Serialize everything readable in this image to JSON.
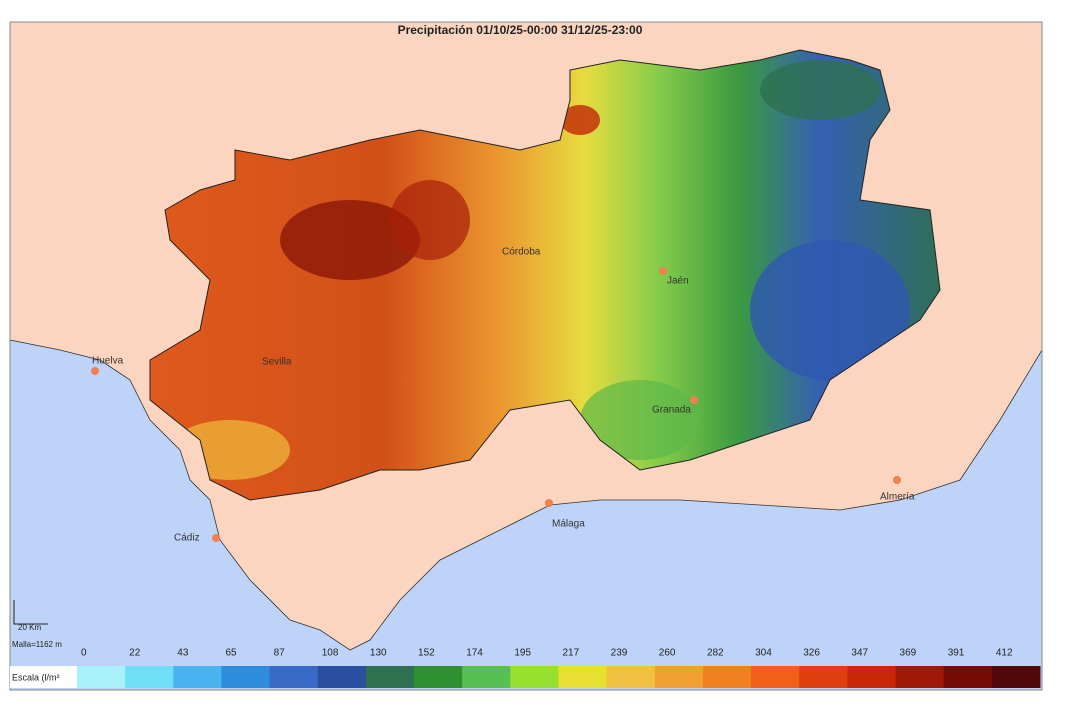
{
  "header": {
    "title": "Precipitación  01/10/25-00:00 31/12/25-23:00"
  },
  "cities": [
    "Huelva",
    "Sevilla",
    "Córdoba",
    "Jaén",
    "Granada",
    "Málaga",
    "Almería",
    "Cádiz"
  ],
  "scale_bar": {
    "distance": "20 Km",
    "grid": "Malla=1162 m"
  },
  "scale": {
    "label": "Escala (l/m²",
    "ticks": [
      0,
      22,
      43,
      65,
      87,
      108,
      130,
      152,
      174,
      195,
      217,
      239,
      260,
      282,
      304,
      326,
      347,
      369,
      391,
      412
    ],
    "colors": [
      "#a8f0fa",
      "#6ee0f5",
      "#4ab4f0",
      "#2e8cdc",
      "#3a6ac8",
      "#2a4ea0",
      "#2e7050",
      "#2e9030",
      "#58c050",
      "#98e030",
      "#e8e030",
      "#f0c040",
      "#f0a030",
      "#f08020",
      "#f06018",
      "#e04010",
      "#c82808",
      "#a01808",
      "#780a08",
      "#500808"
    ]
  }
}
